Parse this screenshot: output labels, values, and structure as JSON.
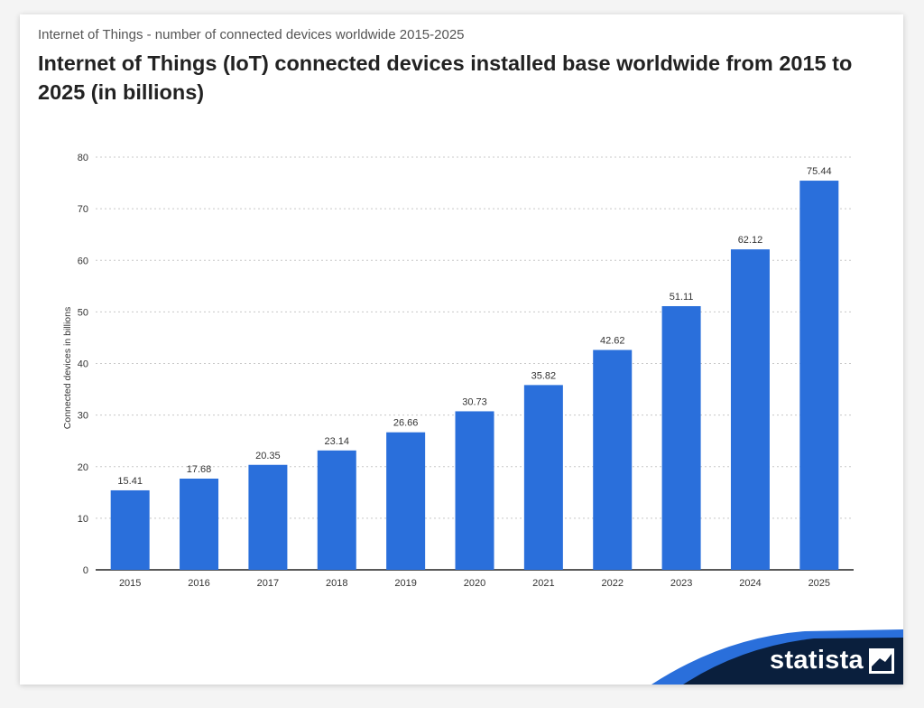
{
  "header": {
    "supertitle": "Internet of Things - number of connected devices worldwide 2015-2025",
    "title": "Internet of Things (IoT) connected devices installed base worldwide from 2015 to 2025 (in billions)"
  },
  "brand": {
    "logo_text": "statista",
    "band_color": "#0a1f3d",
    "accent_color": "#2a6fdb"
  },
  "chart_data": {
    "type": "bar",
    "categories": [
      "2015",
      "2016",
      "2017",
      "2018",
      "2019",
      "2020",
      "2021",
      "2022",
      "2023",
      "2024",
      "2025"
    ],
    "values": [
      15.41,
      17.68,
      20.35,
      23.14,
      26.66,
      30.73,
      35.82,
      42.62,
      51.11,
      62.12,
      75.44
    ],
    "value_labels": [
      "15.41",
      "17.68",
      "20.35",
      "23.14",
      "26.66",
      "30.73",
      "35.82",
      "42.62",
      "51.11",
      "62.12",
      "75.44"
    ],
    "title": "Internet of Things (IoT) connected devices installed base worldwide from 2015 to 2025 (in billions)",
    "xlabel": "",
    "ylabel": "Connected devices in billions",
    "ylim": [
      0,
      80
    ],
    "yticks": [
      "0",
      "10",
      "20",
      "30",
      "40",
      "50",
      "60",
      "70",
      "80"
    ],
    "grid": true,
    "bar_color": "#2a6fdb"
  }
}
